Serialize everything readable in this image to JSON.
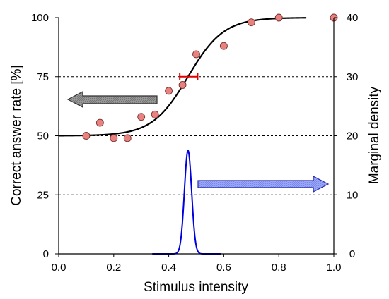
{
  "chart_data": {
    "type": "scatter",
    "xlabel": "Stimulus intensity",
    "ylabel_left": "Correct answer rate [%]",
    "ylabel_right": "Marginal density",
    "xlim": [
      0.0,
      1.0
    ],
    "ylim_left": [
      0,
      100
    ],
    "ylim_right": [
      0,
      40
    ],
    "x_ticks": [
      "0.0",
      "0.2",
      "0.4",
      "0.6",
      "0.8",
      "1.0"
    ],
    "y_left_ticks": [
      "0",
      "25",
      "50",
      "75",
      "100"
    ],
    "y_right_ticks": [
      "0",
      "10",
      "20",
      "30",
      "40"
    ],
    "grid": "dashed horizontal lines at 25, 50, 75",
    "points": {
      "x": [
        0.1,
        0.15,
        0.2,
        0.25,
        0.3,
        0.35,
        0.4,
        0.45,
        0.5,
        0.6,
        0.7,
        0.8,
        1.0
      ],
      "y": [
        50,
        55.5,
        49,
        49,
        58,
        59,
        69,
        71.5,
        84.5,
        88,
        98,
        100,
        100
      ]
    },
    "psychometric_fit": {
      "type": "logistic",
      "lower": 50,
      "upper": 100,
      "threshold": 0.47,
      "slope_width": 0.065,
      "x_range": [
        0.0,
        0.9
      ]
    },
    "threshold_errorbar": {
      "x_center": 0.47,
      "x_min": 0.44,
      "x_max": 0.505,
      "y": 75
    },
    "marginal_density": {
      "mean": 0.47,
      "sd": 0.0132,
      "peak": 17.5,
      "x_range": [
        0.34,
        0.59
      ]
    },
    "arrows": [
      {
        "direction": "left",
        "meaning": "left axis"
      },
      {
        "direction": "right",
        "meaning": "right axis"
      }
    ],
    "colors": {
      "points_fill": "#E8827F",
      "points_edge": "#7A3030",
      "fit_line": "#000000",
      "density_line": "#0000E0",
      "errorbar": "#E00000",
      "arrow_left": "#8C8C8C",
      "arrow_right": "#8A9AF0"
    }
  }
}
